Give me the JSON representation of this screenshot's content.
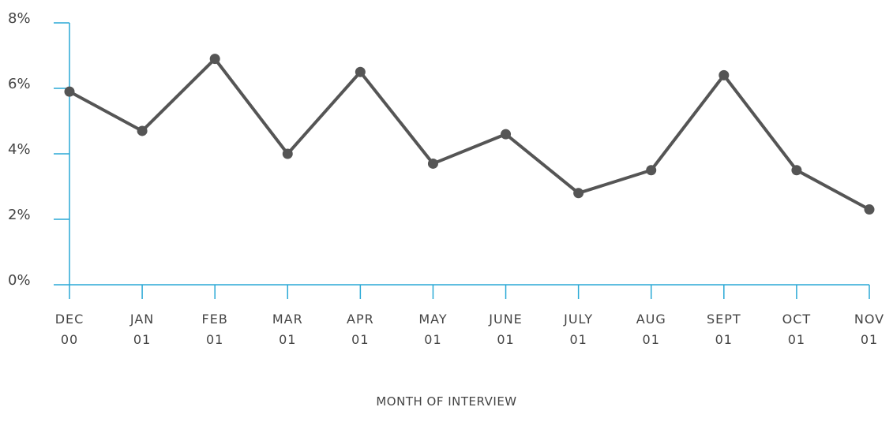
{
  "chart_data": {
    "type": "line",
    "x_label": "MONTH OF INTERVIEW",
    "categories": [
      "DEC 00",
      "JAN 01",
      "FEB 01",
      "MAR 01",
      "APR 01",
      "MAY 01",
      "JUNE 01",
      "JULY 01",
      "AUG 01",
      "SEPT 01",
      "OCT 01",
      "NOV 01"
    ],
    "series": [
      {
        "color": "#555555",
        "values": [
          5.9,
          4.7,
          6.9,
          4.0,
          6.5,
          3.7,
          4.6,
          2.8,
          3.5,
          6.4,
          3.5,
          2.3
        ]
      }
    ],
    "ylim": [
      0,
      8
    ],
    "yticks": [
      {
        "value": 0,
        "label": "0%"
      },
      {
        "value": 2,
        "label": "2%"
      },
      {
        "value": 4,
        "label": "4%"
      },
      {
        "value": 6,
        "label": "6%"
      },
      {
        "value": 8,
        "label": "8%"
      }
    ],
    "axis_color": "#2aa9d6"
  }
}
